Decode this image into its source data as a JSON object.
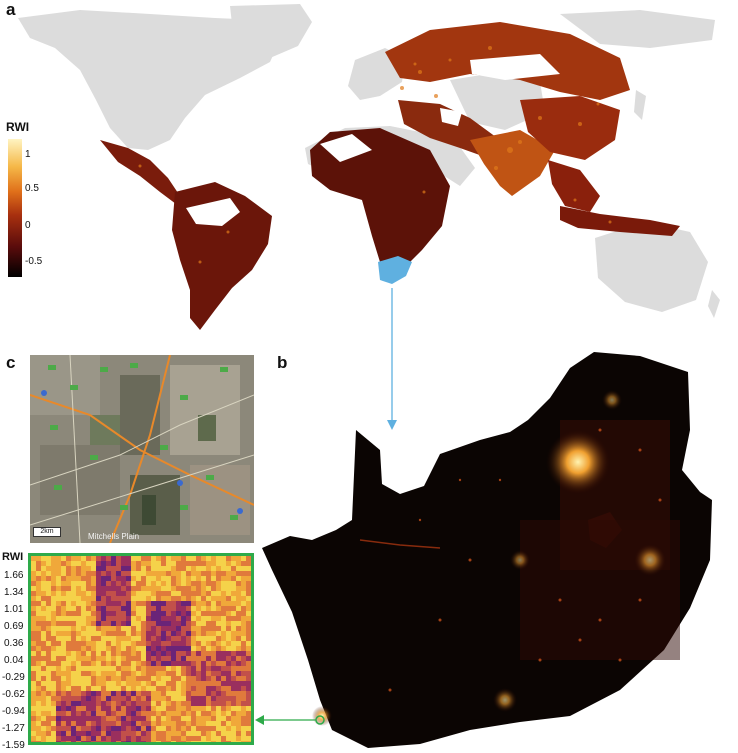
{
  "panels": {
    "a": "a",
    "b": "b",
    "c": "c"
  },
  "world_legend": {
    "title": "RWI",
    "ticks": [
      "1",
      "0.5",
      "0",
      "-0.5"
    ],
    "colors": [
      "#000000",
      "#5a0c0c",
      "#a8300f",
      "#e0701a",
      "#f5b848",
      "#fff4c2"
    ]
  },
  "grid_legend": {
    "title": "RWI",
    "ticks": [
      "1.66",
      "1.34",
      "1.01",
      "0.69",
      "0.36",
      "0.04",
      "-0.29",
      "-0.62",
      "-0.94",
      "-1.27",
      "-1.59"
    ],
    "colors": [
      "#f5d24a",
      "#f0a83a",
      "#e07a3c",
      "#c2504a",
      "#9a2f5e",
      "#6a2478",
      "#3a1e6a"
    ]
  },
  "satellite": {
    "scale_label": "2km",
    "place_label": "Mitchells Plain"
  },
  "colors": {
    "land_gray": "#dcdcdc",
    "highlight_blue": "#5fb0e0",
    "arrow_blue": "#5fb0e0",
    "arrow_green": "#2eaa4a",
    "frame_green": "#2eaa4a"
  }
}
